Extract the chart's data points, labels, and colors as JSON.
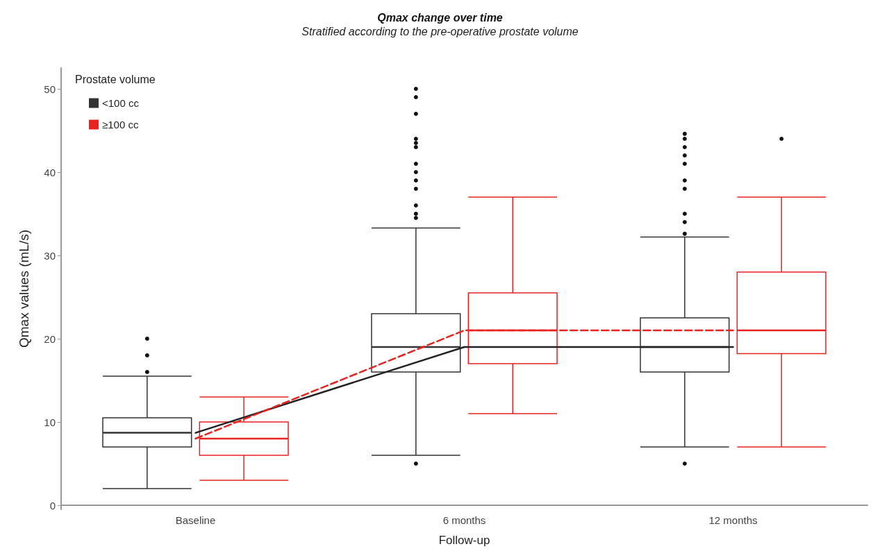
{
  "chart_data": {
    "type": "box",
    "title": "Qmax change over time",
    "subtitle": "Stratified according to the pre-operative prostate volume",
    "xlabel": "Follow-up",
    "ylabel": "Qmax values (mL/s)",
    "legend_title": "Prostate volume",
    "categories": [
      "Baseline",
      "6 months",
      "12 months"
    ],
    "series": [
      {
        "name": "<100 cc",
        "color": "#333333",
        "boxes": [
          {
            "low": 2,
            "q1": 7,
            "median": 8.7,
            "q3": 10.5,
            "high": 15.5,
            "outliers": [
              16,
              18,
              20
            ]
          },
          {
            "low": 6,
            "q1": 16,
            "median": 19,
            "q3": 23,
            "high": 33.3,
            "outliers": [
              5,
              34.5,
              35,
              36,
              38,
              39,
              40,
              41,
              43,
              43.5,
              44,
              47,
              49,
              50
            ]
          },
          {
            "low": 7,
            "q1": 16,
            "median": 19,
            "q3": 22.5,
            "high": 32.2,
            "outliers": [
              5,
              32.6,
              34,
              35,
              38,
              39,
              41,
              42,
              43,
              44,
              44.6
            ]
          }
        ]
      },
      {
        "name": "≥100 cc",
        "color": "#e8231f",
        "boxes": [
          {
            "low": 3,
            "q1": 6,
            "median": 8,
            "q3": 10,
            "high": 13
          },
          {
            "low": 11,
            "q1": 17,
            "median": 21,
            "q3": 25.5,
            "high": 37
          },
          {
            "low": 7,
            "q1": 18.2,
            "median": 21,
            "q3": 28,
            "high": 37,
            "outliers": [
              44
            ]
          }
        ]
      },
      {
        "type": "line",
        "color": "#222222",
        "line_style": "solid",
        "values": [
          8.7,
          19,
          19
        ]
      },
      {
        "type": "line",
        "color": "#e8231f",
        "line_style": "dashed",
        "values": [
          8,
          21,
          21
        ]
      }
    ],
    "ylim": [
      -0.5,
      52.5
    ],
    "yticks": [
      0,
      10,
      20,
      30,
      40,
      50
    ],
    "grid": false,
    "legend": "top left",
    "marker": "none"
  }
}
